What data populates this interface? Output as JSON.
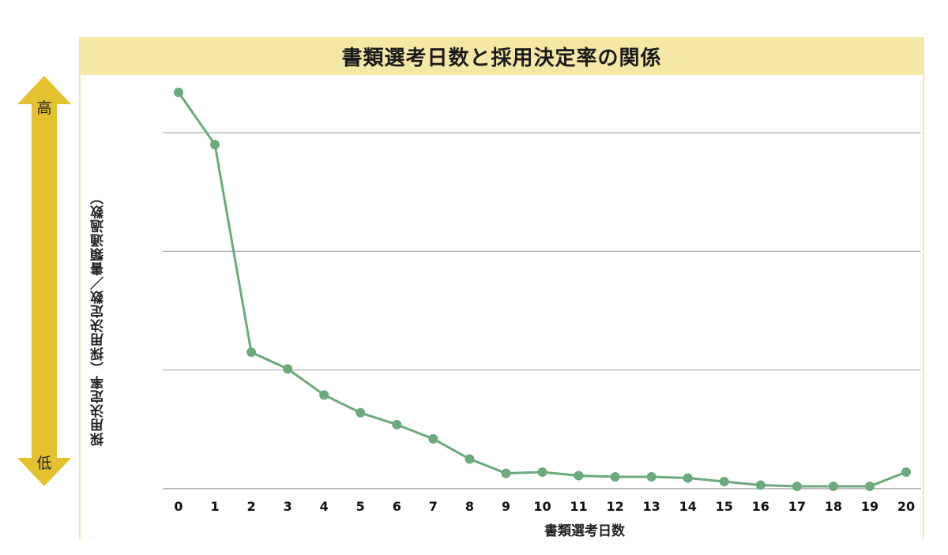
{
  "chart_data": {
    "type": "line",
    "title": "書類選考日数と採用決定率の関係",
    "xlabel": "書類選考日数",
    "ylabel": "採用決定率（採用決定数／書類通過数）",
    "y_high_label": "高",
    "y_low_label": "低",
    "x": [
      0,
      1,
      2,
      3,
      4,
      5,
      6,
      7,
      8,
      9,
      10,
      11,
      12,
      13,
      14,
      15,
      16,
      17,
      18,
      19,
      20
    ],
    "series": [
      {
        "values": [
          3.34,
          2.9,
          1.15,
          1.01,
          0.79,
          0.64,
          0.54,
          0.42,
          0.25,
          0.13,
          0.14,
          0.11,
          0.1,
          0.1,
          0.09,
          0.06,
          0.03,
          0.02,
          0.02,
          0.02,
          0.14
        ],
        "color": "#6aaa7c"
      }
    ],
    "ylim": [
      0,
      3.4
    ],
    "y_gridlines": [
      1,
      2,
      3
    ],
    "y_tick_labels_shown": false,
    "grid": true,
    "grid_color": "#aaaaaa",
    "accent_colors": {
      "title_bg": "#f5e8a6",
      "arrow": "#e4c12e"
    }
  }
}
